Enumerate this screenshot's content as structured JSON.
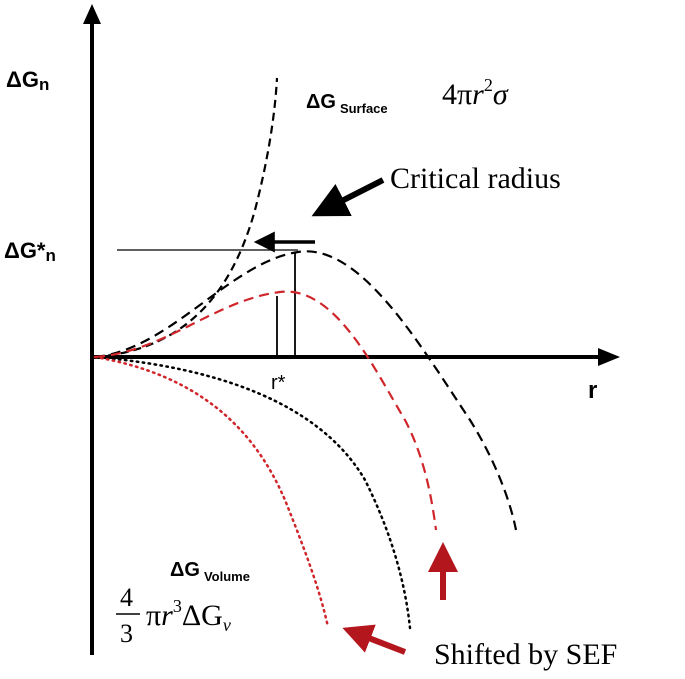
{
  "labels": {
    "y_axis": "ΔGn",
    "y_axis_main": "ΔG",
    "y_axis_sub": "n",
    "x_axis": "r",
    "critical_energy_main": "ΔG*",
    "critical_energy_sub": "n",
    "critical_radius_tick": "r*",
    "surface_main": "ΔG",
    "surface_sub": "Surface",
    "volume_main": "ΔG",
    "volume_sub": "Volume",
    "critical_radius_note": "Critical radius",
    "shift_note": "Shifted by SEF"
  },
  "formulas": {
    "surface": {
      "coeff": "4π",
      "var": "r",
      "exp": "2",
      "tail": "σ"
    },
    "volume": {
      "frac_num": "4",
      "frac_den": "3",
      "pi": "π",
      "var": "r",
      "exp": "3",
      "tail_main": "ΔG",
      "tail_sub": "v"
    }
  },
  "colors": {
    "axis": "#000000",
    "original_curve": "#000000",
    "shifted_curve": "#d0262b",
    "shift_arrow": "#b3161c"
  }
}
